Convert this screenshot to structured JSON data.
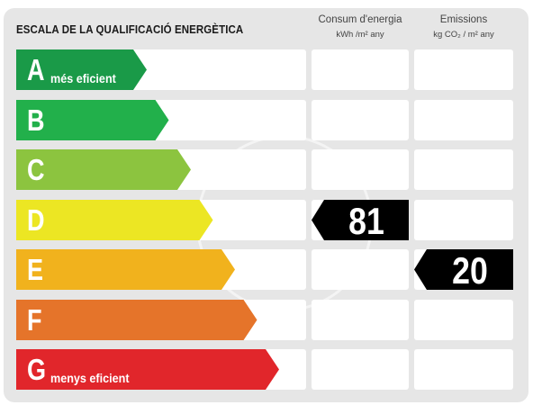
{
  "title": "ESCALA DE LA QUALIFICACIÓ ENERGÈTICA",
  "columns": {
    "consumption": {
      "label": "Consum d'energia",
      "unit": "kWh /m² any"
    },
    "emissions": {
      "label": "Emissions",
      "unit": "kg CO₂ / m² any"
    }
  },
  "classes": [
    {
      "letter": "A",
      "note": "més eficient",
      "color": "#1a9a48"
    },
    {
      "letter": "B",
      "note": "",
      "color": "#22b04b"
    },
    {
      "letter": "C",
      "note": "",
      "color": "#8cc43f"
    },
    {
      "letter": "D",
      "note": "",
      "color": "#ece623"
    },
    {
      "letter": "E",
      "note": "",
      "color": "#f1b21d"
    },
    {
      "letter": "F",
      "note": "",
      "color": "#e5742a"
    },
    {
      "letter": "G",
      "note": "menys eficient",
      "color": "#e1262b"
    }
  ],
  "rating": {
    "consumption": {
      "class": "D",
      "value": "81"
    },
    "emissions": {
      "class": "E",
      "value": "20"
    }
  }
}
